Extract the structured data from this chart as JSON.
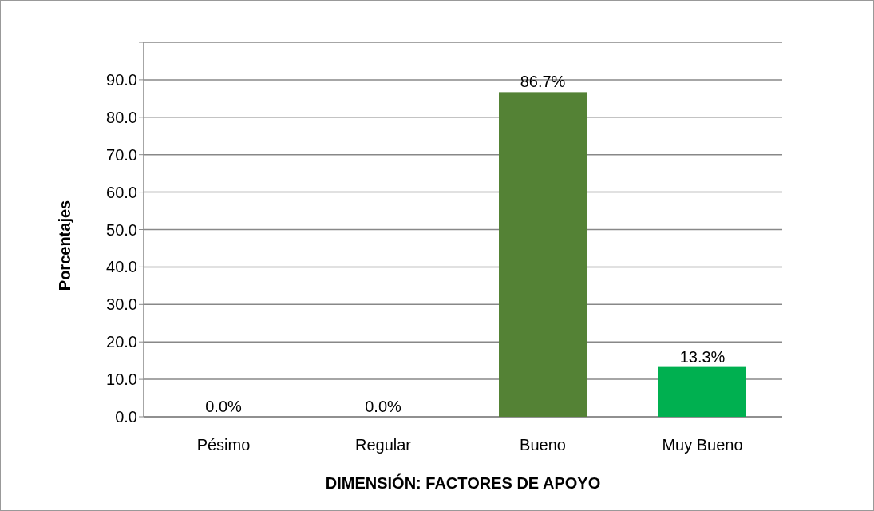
{
  "chart_data": {
    "type": "bar",
    "xlabel": "DIMENSIÓN: FACTORES DE APOYO",
    "ylabel": "Porcentajes",
    "categories": [
      "Pésimo",
      "Regular",
      "Bueno",
      "Muy Bueno"
    ],
    "values": [
      0,
      0,
      86.7,
      13.3
    ],
    "colors": [
      "#4a7eb0",
      "#c00000",
      "#548235",
      "#00b050"
    ],
    "value_labels": [
      "0.0%",
      "0.0%",
      "86.7%",
      "13.3%"
    ],
    "ylim": [
      0,
      100
    ],
    "yticks": [
      {
        "value": 0,
        "label": "0.0"
      },
      {
        "value": 10,
        "label": "10.0"
      },
      {
        "value": 20,
        "label": "20.0"
      },
      {
        "value": 30,
        "label": "30.0"
      },
      {
        "value": 40,
        "label": "40.0"
      },
      {
        "value": 50,
        "label": "50.0"
      },
      {
        "value": 60,
        "label": "60.0"
      },
      {
        "value": 70,
        "label": "70.0"
      },
      {
        "value": 80,
        "label": "80.0"
      },
      {
        "value": 90,
        "label": "90.0"
      },
      {
        "value": 100,
        "label": null
      }
    ],
    "grid": true
  }
}
